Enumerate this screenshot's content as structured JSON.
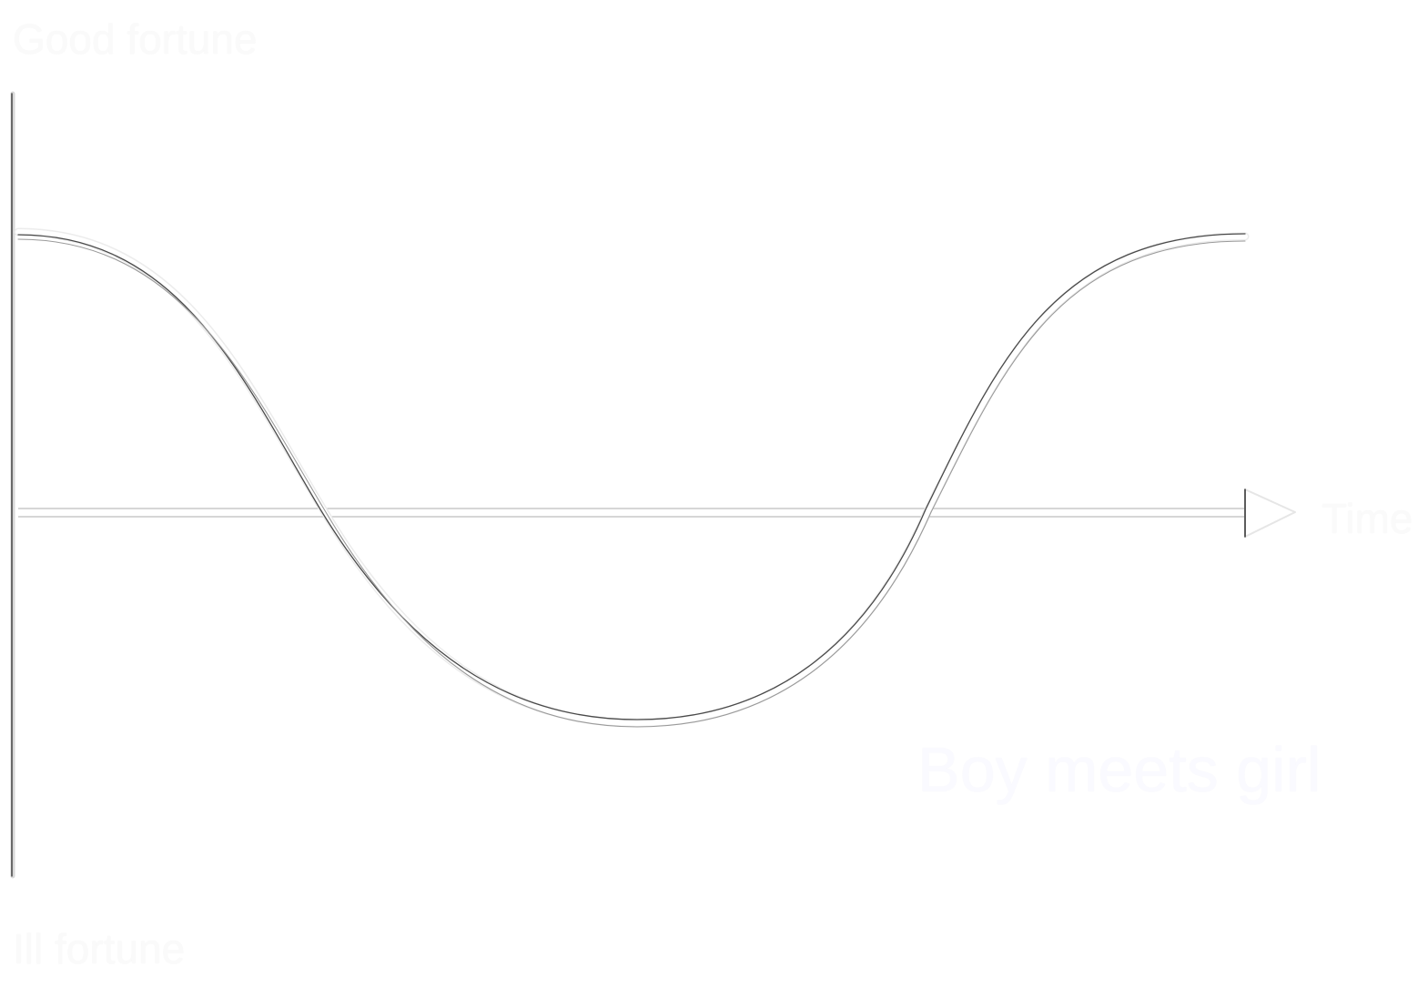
{
  "labels": {
    "top": "Good fortune",
    "bottom": "Ill fortune",
    "time_axis": "Time",
    "story_shape": "Boy meets girl"
  },
  "colors": {
    "background": "#ffffff",
    "curve": "#4a4a4a",
    "axis": "#9a9a9a",
    "text": "#fafafa"
  },
  "icons": {
    "axis_arrow": "arrow-head-right-icon"
  }
}
